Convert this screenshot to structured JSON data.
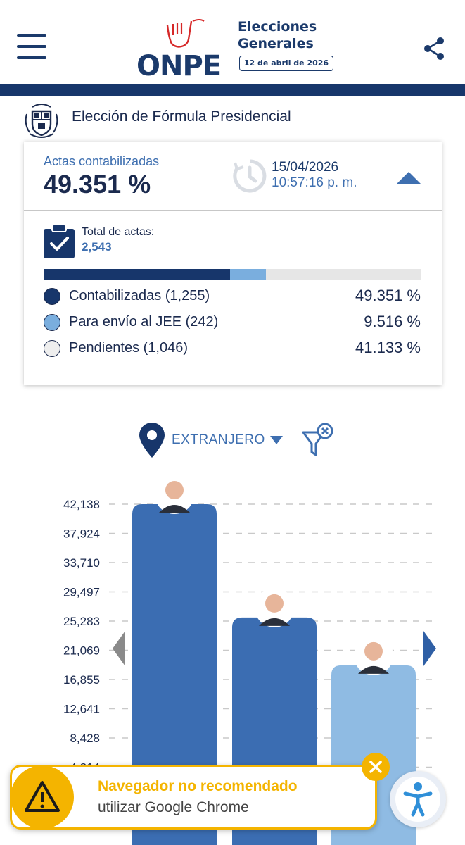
{
  "header": {
    "logo_text": "ONPE",
    "title_line1": "Elecciones",
    "title_line2": "Generales",
    "election_date": "12 de abril de 2026"
  },
  "section": {
    "title": "Elección de Fórmula Presidencial"
  },
  "summary": {
    "actas_label": "Actas contabilizadas",
    "actas_value": "49.351 %",
    "update_date": "15/04/2026",
    "update_time": "10:57:16 p. m.",
    "total_label": "Total de actas:",
    "total_value": "2,543"
  },
  "progress": {
    "contabilizadas_pct": 49.351,
    "jee_pct": 9.516,
    "pendientes_pct": 41.133
  },
  "legend": [
    {
      "label": "Contabilizadas (1,255)",
      "pct": "49.351 %",
      "color": "#17366b"
    },
    {
      "label": "Para envío al JEE (242)",
      "pct": "9.516 %",
      "color": "#7aaede"
    },
    {
      "label": "Pendientes (1,046)",
      "pct": "41.133 %",
      "color": "#eeeeee"
    }
  ],
  "filter": {
    "location": "EXTRANJERO"
  },
  "chart_data": {
    "type": "bar",
    "y_ticks": [
      "42,138",
      "37,924",
      "33,710",
      "29,497",
      "25,283",
      "21,069",
      "16,855",
      "12,641",
      "8,428",
      "4,214"
    ],
    "ylim": [
      0,
      42138
    ],
    "values": [
      42138,
      25800,
      18900
    ],
    "colors": [
      "#3b6db2",
      "#3b6db2",
      "#8fbbe3"
    ]
  },
  "toast": {
    "title": "Navegador no recomendado",
    "subtitle": "utilizar Google Chrome"
  },
  "colors": {
    "navy": "#17366b",
    "blue": "#3e6fb0",
    "light_blue": "#7aaede",
    "warning": "#f4b400"
  }
}
